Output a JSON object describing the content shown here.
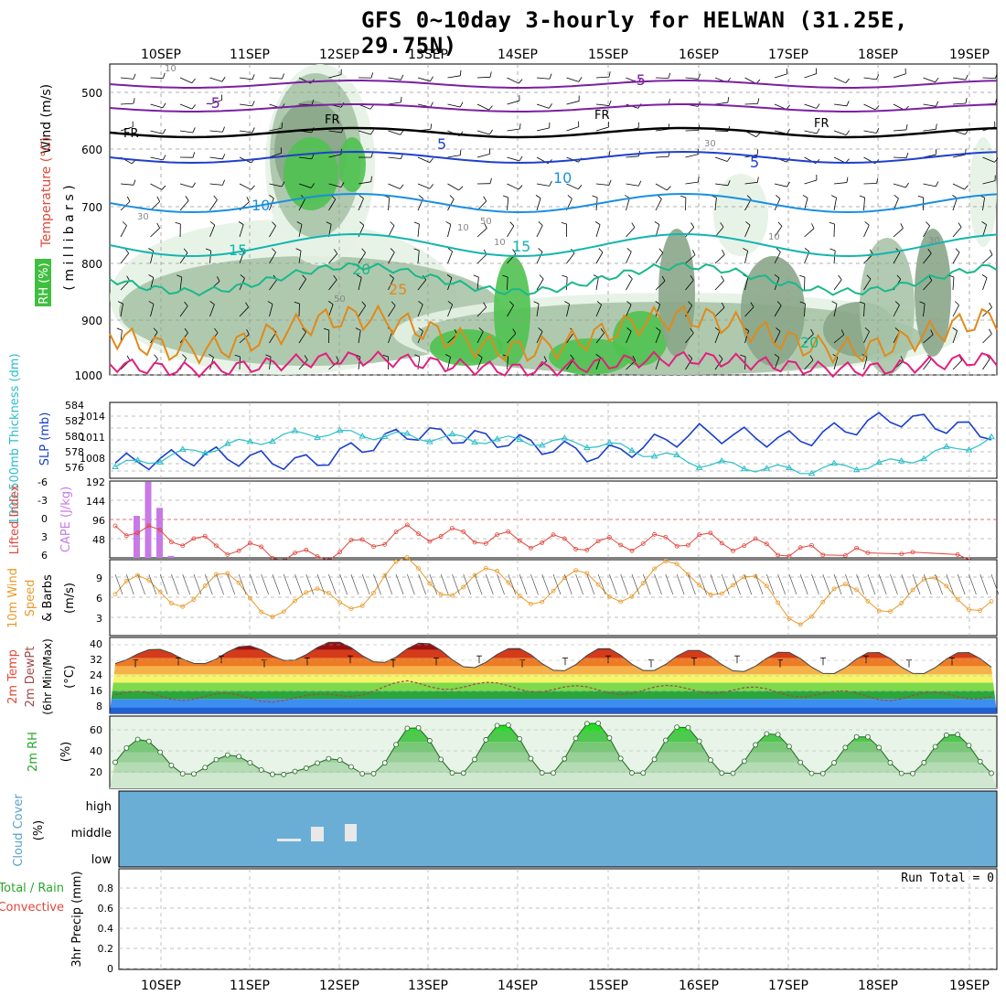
{
  "title": "GFS 0~10day 3-hourly for HELWAN (31.25E, 29.75N)",
  "dates": [
    "10SEP",
    "11SEP",
    "12SEP",
    "13SEP",
    "14SEP",
    "15SEP",
    "16SEP",
    "17SEP",
    "18SEP",
    "19SEP"
  ],
  "colors": {
    "rh_light": "#e6f2e6",
    "rh_mid": "#a9c4a9",
    "rh_dark": "#8aa68a",
    "rh_green": "#4fc24f",
    "temp_neg": "#7b1fa2",
    "freeze": "#000000",
    "temp_5": "#1e3fcc",
    "temp_10": "#1a8fe0",
    "temp_15": "#12b5b0",
    "temp_20": "#1ab88a",
    "temp_25": "#e08a1a",
    "temp_30": "#e0207f",
    "slp": "#1a3fcc",
    "thickness": "#2bbfc8",
    "lifted": "#e0453a",
    "cape": "#c77ae6",
    "wind10": "#e89a2a",
    "rh2m": "#3bc43b",
    "cloud": "#6aaed6"
  },
  "panels": {
    "upper": {
      "ylabel_wind": "Wind (m/s)",
      "ylabel_temp": "Temperature (°C)",
      "ylabel_rh": "RH (%)",
      "ylabel_mb": "( m i l l i b a r s )",
      "levels": [
        "500",
        "600",
        "700",
        "800",
        "900",
        "1000"
      ],
      "contour_labels": [
        "-5",
        "-5",
        "FR",
        "FR",
        "FR",
        "FR",
        "5",
        "5",
        "10",
        "10",
        "15",
        "15",
        "20",
        "20",
        "25"
      ],
      "rh_labels": [
        "10",
        "30",
        "10",
        "50",
        "10",
        "30",
        "10",
        "30",
        "50"
      ]
    },
    "slp": {
      "ylabel_thick": "1000-500mb Thickness (dm)",
      "ylabel_slp": "SLP (mb)",
      "thick_ticks": [
        "584",
        "582",
        "580",
        "578",
        "576"
      ],
      "slp_ticks": [
        "1014",
        "1011",
        "1008"
      ]
    },
    "cape": {
      "ylabel_li": "Lifted Index",
      "ylabel_cape": "CAPE (J/kg)",
      "li_ticks": [
        "-6",
        "-3",
        "0",
        "3",
        "6"
      ],
      "cape_ticks": [
        "192",
        "144",
        "96",
        "48"
      ]
    },
    "wind10": {
      "ylabel": "10m Wind",
      "ylabel2": "Speed",
      "ylabel3": "& Barbs",
      "unit": "(m/s)",
      "ticks": [
        "9",
        "6",
        "3"
      ]
    },
    "temp2m": {
      "ylabel1": "2m Temp",
      "ylabel2": "2m DewPt",
      "ylabel3": "(6hr Min/Max)",
      "unit": "(°C)",
      "ticks": [
        "40",
        "32",
        "24",
        "16",
        "8"
      ]
    },
    "rh2m": {
      "ylabel": "2m RH",
      "unit": "(%)",
      "ticks": [
        "60",
        "40",
        "20"
      ]
    },
    "cloud": {
      "ylabel": "Cloud Cover",
      "unit": "(%)",
      "levels": [
        "high",
        "middle",
        "low"
      ]
    },
    "precip": {
      "ylabel1": "Total / Rain",
      "ylabel2": "Convective",
      "ylabel3": "3hr Precip (mm)",
      "ticks": [
        "0.8",
        "0.6",
        "0.4",
        "0.2",
        "0"
      ],
      "run_total": "Run Total = 0"
    }
  },
  "chart_data": [
    {
      "type": "line",
      "title": "SLP (mb) / 1000-500mb Thickness (dm)",
      "xlabel": "",
      "ylabel": "SLP (mb)",
      "x": [
        "10SEP",
        "11SEP",
        "12SEP",
        "13SEP",
        "14SEP",
        "15SEP",
        "16SEP",
        "17SEP",
        "18SEP",
        "19SEP"
      ],
      "series": [
        {
          "name": "SLP (mb)",
          "values": [
            1008,
            1009,
            1008,
            1012,
            1011,
            1009,
            1012,
            1011,
            1014,
            1012
          ]
        },
        {
          "name": "1000-500mb Thickness (dm)",
          "values": [
            576.5,
            579,
            581,
            580.5,
            580,
            579.5,
            577,
            576,
            577,
            580
          ]
        }
      ],
      "ylim": [
        1006,
        1016
      ],
      "y2lim": [
        575,
        585
      ]
    },
    {
      "type": "bar",
      "title": "CAPE (J/kg)",
      "x": [
        "10SEP-03",
        "10SEP-06",
        "10SEP-09",
        "10SEP-12",
        "10SEP-15"
      ],
      "values": [
        105,
        190,
        125,
        5,
        0
      ],
      "ylim": [
        0,
        192
      ]
    },
    {
      "type": "line",
      "title": "Lifted Index",
      "ylim": [
        6,
        -6
      ],
      "x": [
        "10SEP",
        "11SEP",
        "12SEP",
        "13SEP",
        "14SEP",
        "15SEP",
        "16SEP",
        "17SEP",
        "18SEP",
        "19SEP"
      ],
      "values": [
        1,
        4,
        6,
        2,
        3,
        4,
        3,
        5,
        6,
        7
      ]
    },
    {
      "type": "line",
      "title": "10m Wind Speed (m/s)",
      "ylim": [
        0,
        11
      ],
      "x": [
        "10SEP",
        "11SEP",
        "12SEP",
        "13SEP",
        "14SEP",
        "15SEP",
        "16SEP",
        "17SEP",
        "18SEP",
        "19SEP"
      ],
      "values": [
        6,
        7,
        4,
        9,
        7,
        7,
        9,
        4,
        6,
        6
      ]
    },
    {
      "type": "area",
      "title": "2m Temp / DewPt (°C)",
      "ylim": [
        5,
        42
      ],
      "x": [
        "10SEP",
        "11SEP",
        "12SEP",
        "13SEP",
        "14SEP",
        "15SEP",
        "16SEP",
        "17SEP",
        "18SEP",
        "19SEP"
      ],
      "series": [
        {
          "name": "2m Temp max",
          "values": [
            36,
            37,
            40,
            40,
            37,
            37,
            36,
            35,
            35,
            35
          ]
        },
        {
          "name": "2m Temp min",
          "values": [
            29,
            29,
            31,
            29,
            26,
            25,
            26,
            24,
            24,
            24
          ]
        },
        {
          "name": "2m DewPt",
          "values": [
            14,
            13,
            12,
            19,
            18,
            16,
            17,
            15,
            13,
            14
          ]
        }
      ]
    },
    {
      "type": "area",
      "title": "2m RH (%)",
      "ylim": [
        5,
        75
      ],
      "x": [
        "10SEP",
        "11SEP",
        "12SEP",
        "13SEP",
        "14SEP",
        "15SEP",
        "16SEP",
        "17SEP",
        "18SEP",
        "19SEP"
      ],
      "values": [
        58,
        40,
        27,
        65,
        68,
        70,
        65,
        57,
        56,
        60
      ]
    },
    {
      "type": "bar",
      "title": "3hr Precip (mm)",
      "ylim": [
        0,
        1
      ],
      "x": [
        "10SEP",
        "11SEP",
        "12SEP",
        "13SEP",
        "14SEP",
        "15SEP",
        "16SEP",
        "17SEP",
        "18SEP",
        "19SEP"
      ],
      "values": [
        0,
        0,
        0,
        0,
        0,
        0,
        0,
        0,
        0,
        0
      ]
    }
  ]
}
